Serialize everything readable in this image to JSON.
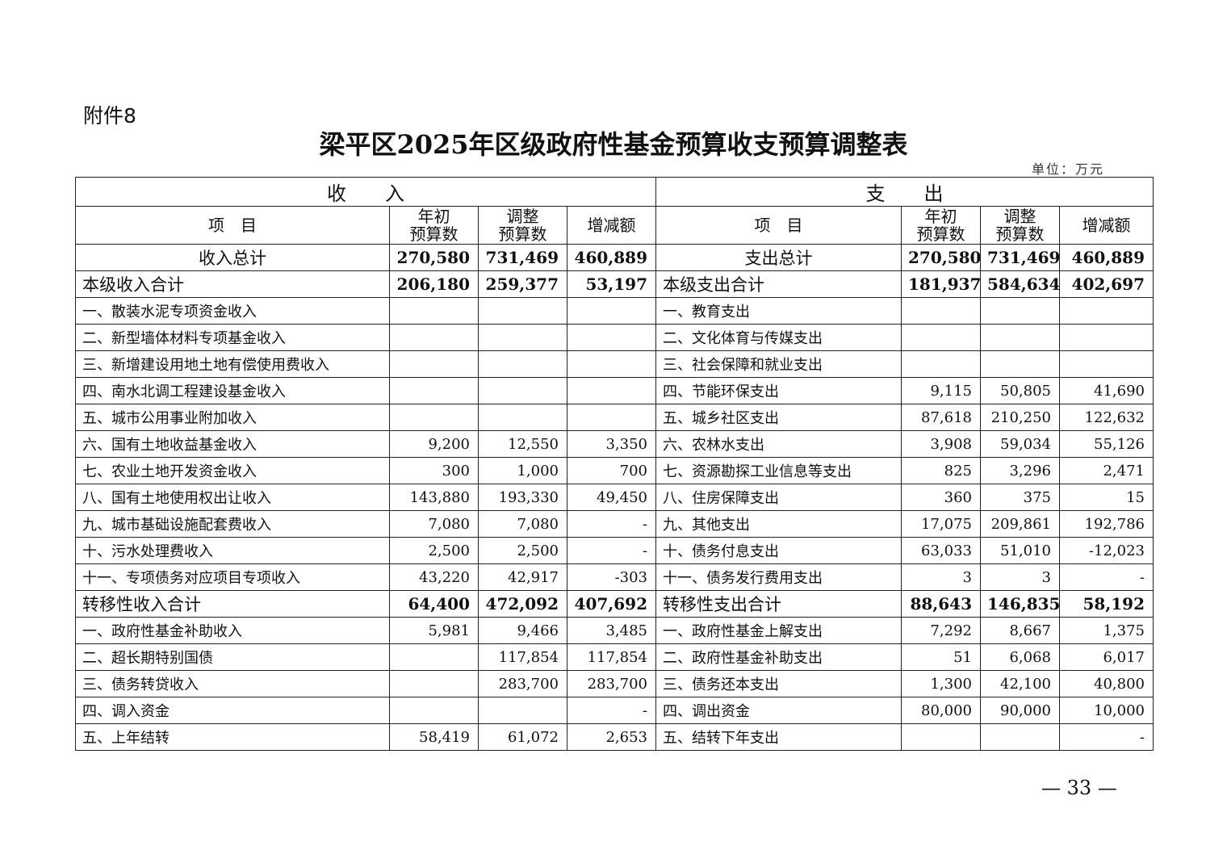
{
  "attachment": "附件8",
  "title": "梁平区2025年区级政府性基金预算收支预算调整表",
  "unit": "单位：万元",
  "sections": {
    "income": "收　　入",
    "expense": "支　　出"
  },
  "headers": {
    "item": "项　目",
    "initial": "年初\n预算数",
    "adjusted": "调整\n预算数",
    "change": "增减额"
  },
  "rows": [
    {
      "type": "total",
      "in": [
        "收入总计",
        "270,580",
        "731,469",
        "460,889"
      ],
      "out": [
        "支出总计",
        "270,580",
        "731,469",
        "460,889"
      ]
    },
    {
      "type": "sub",
      "in": [
        "本级收入合计",
        "206,180",
        "259,377",
        "53,197"
      ],
      "out": [
        "本级支出合计",
        "181,937",
        "584,634",
        "402,697"
      ]
    },
    {
      "type": "item",
      "in": [
        "一、散装水泥专项资金收入",
        "",
        "",
        ""
      ],
      "out": [
        "一、教育支出",
        "",
        "",
        ""
      ]
    },
    {
      "type": "item",
      "in": [
        "二、新型墙体材料专项基金收入",
        "",
        "",
        ""
      ],
      "out": [
        "二、文化体育与传媒支出",
        "",
        "",
        ""
      ]
    },
    {
      "type": "item",
      "in": [
        "三、新增建设用地土地有偿使用费收入",
        "",
        "",
        ""
      ],
      "out": [
        "三、社会保障和就业支出",
        "",
        "",
        ""
      ]
    },
    {
      "type": "item",
      "in": [
        "四、南水北调工程建设基金收入",
        "",
        "",
        ""
      ],
      "out": [
        "四、节能环保支出",
        "9,115",
        "50,805",
        "41,690"
      ]
    },
    {
      "type": "item",
      "in": [
        "五、城市公用事业附加收入",
        "",
        "",
        ""
      ],
      "out": [
        "五、城乡社区支出",
        "87,618",
        "210,250",
        "122,632"
      ]
    },
    {
      "type": "item",
      "in": [
        "六、国有土地收益基金收入",
        "9,200",
        "12,550",
        "3,350"
      ],
      "out": [
        "六、农林水支出",
        "3,908",
        "59,034",
        "55,126"
      ]
    },
    {
      "type": "item",
      "in": [
        "七、农业土地开发资金收入",
        "300",
        "1,000",
        "700"
      ],
      "out": [
        "七、资源勘探工业信息等支出",
        "825",
        "3,296",
        "2,471"
      ]
    },
    {
      "type": "item",
      "in": [
        "八、国有土地使用权出让收入",
        "143,880",
        "193,330",
        "49,450"
      ],
      "out": [
        "八、住房保障支出",
        "360",
        "375",
        "15"
      ]
    },
    {
      "type": "item",
      "in": [
        "九、城市基础设施配套费收入",
        "7,080",
        "7,080",
        "-"
      ],
      "out": [
        "九、其他支出",
        "17,075",
        "209,861",
        "192,786"
      ]
    },
    {
      "type": "item",
      "in": [
        "十、污水处理费收入",
        "2,500",
        "2,500",
        "-"
      ],
      "out": [
        "十、债务付息支出",
        "63,033",
        "51,010",
        "-12,023"
      ]
    },
    {
      "type": "item",
      "in": [
        "十一、专项债务对应项目专项收入",
        "43,220",
        "42,917",
        "-303"
      ],
      "out": [
        "十一、债务发行费用支出",
        "3",
        "3",
        "-"
      ]
    },
    {
      "type": "sub",
      "in": [
        "转移性收入合计",
        "64,400",
        "472,092",
        "407,692"
      ],
      "out": [
        "转移性支出合计",
        "88,643",
        "146,835",
        "58,192"
      ]
    },
    {
      "type": "item",
      "in": [
        "一、政府性基金补助收入",
        "5,981",
        "9,466",
        "3,485"
      ],
      "out": [
        "一、政府性基金上解支出",
        "7,292",
        "8,667",
        "1,375"
      ]
    },
    {
      "type": "item",
      "in": [
        "二、超长期特别国债",
        "",
        "117,854",
        "117,854"
      ],
      "out": [
        "二、政府性基金补助支出",
        "51",
        "6,068",
        "6,017"
      ]
    },
    {
      "type": "item",
      "in": [
        "三、债务转贷收入",
        "",
        "283,700",
        "283,700"
      ],
      "out": [
        "三、债务还本支出",
        "1,300",
        "42,100",
        "40,800"
      ]
    },
    {
      "type": "item",
      "in": [
        "四、调入资金",
        "",
        "",
        "-"
      ],
      "out": [
        "四、调出资金",
        "80,000",
        "90,000",
        "10,000"
      ]
    },
    {
      "type": "item",
      "in": [
        "五、上年结转",
        "58,419",
        "61,072",
        "2,653"
      ],
      "out": [
        "五、结转下年支出",
        "",
        "",
        "-"
      ]
    }
  ],
  "page_number": "— 33 —"
}
